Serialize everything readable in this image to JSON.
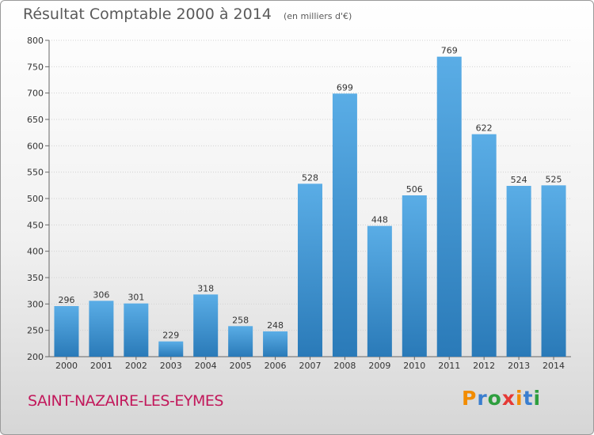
{
  "header": {
    "title": "Résultat Comptable 2000 à 2014",
    "unit": "(en milliers d'€)"
  },
  "footer": {
    "city": "SAINT-NAZAIRE-LES-EYMES",
    "logo": "Proxiti"
  },
  "colors": {
    "bar_top": "#5aade6",
    "bar_bottom": "#2a7ab8",
    "city": "#c2185b",
    "logo_letters": [
      "#f28c00",
      "#3a7ecf",
      "#2e9e3e",
      "#e53935",
      "#f28c00",
      "#3a7ecf",
      "#2e9e3e"
    ]
  },
  "chart_data": {
    "type": "bar",
    "title": "Résultat Comptable 2000 à 2014",
    "subtitle": "(en milliers d'€)",
    "categories": [
      "2000",
      "2001",
      "2002",
      "2003",
      "2004",
      "2005",
      "2006",
      "2007",
      "2008",
      "2009",
      "2010",
      "2011",
      "2012",
      "2013",
      "2014"
    ],
    "values": [
      296,
      306,
      301,
      229,
      318,
      258,
      248,
      528,
      699,
      448,
      506,
      769,
      622,
      524,
      525
    ],
    "ylim": [
      200,
      800
    ],
    "yticks": [
      200,
      250,
      300,
      350,
      400,
      450,
      500,
      550,
      600,
      650,
      700,
      750,
      800
    ],
    "grid": true
  }
}
